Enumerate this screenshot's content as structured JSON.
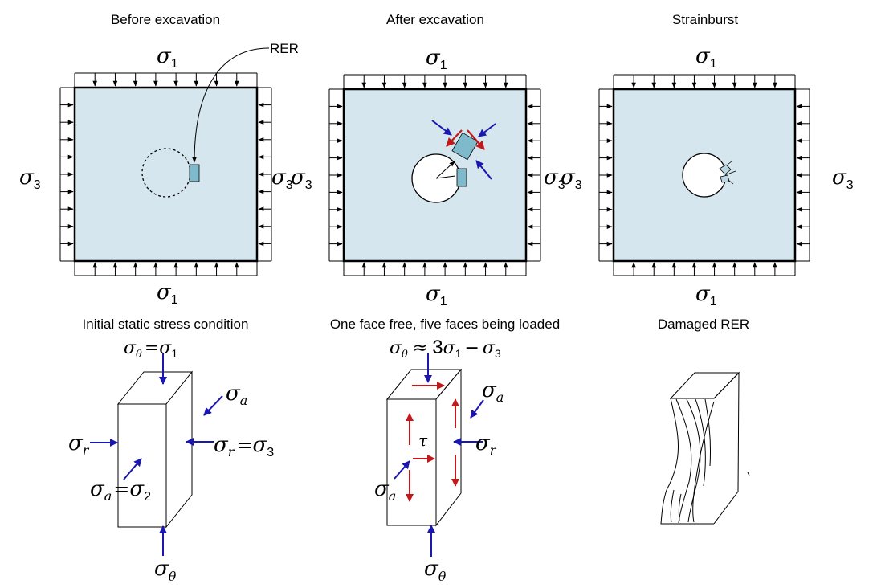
{
  "panels": [
    {
      "title": "Before excavation",
      "subtitle": "Initial static stress condition"
    },
    {
      "title": "After excavation",
      "subtitle": "One face free, five faces being loaded"
    },
    {
      "title": "Strainburst",
      "subtitle": "Damaged RER"
    }
  ],
  "labels": {
    "rer": "RER",
    "sigma": "σ",
    "one": "1",
    "two": "2",
    "three": "3",
    "theta": "θ",
    "a": "a",
    "r": "r",
    "tau": "τ",
    "equals": "=",
    "approx": "≈",
    "minus": "−"
  },
  "colors": {
    "rock": "#d6e6ee",
    "element": "#7fb9cc",
    "blue_arrow": "#1a16b0",
    "red_arrow": "#c0181b",
    "ink": "#000000"
  }
}
